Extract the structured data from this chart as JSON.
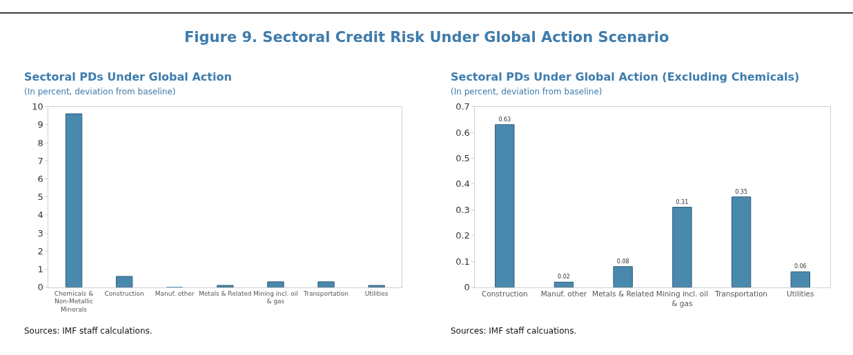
{
  "chart_data": [
    {
      "type": "bar",
      "title": "Sectoral PDs Under Global Action",
      "subtitle": "(In percent, deviation from baseline)",
      "categories": [
        "Chemicals & Non-Metallic Minerals",
        "Construction",
        "Manuf. other",
        "Metals & Related",
        "Mining incl. oil & gas",
        "Transportation",
        "Utilities"
      ],
      "values": [
        9.6,
        0.6,
        0,
        0.1,
        0.3,
        0.3,
        0.1
      ],
      "color": "#4a89ae",
      "ylim": [
        0,
        10
      ],
      "yticks": [
        0,
        1,
        2,
        3,
        4,
        5,
        6,
        7,
        8,
        9,
        10
      ],
      "grid": false,
      "annotations": [
        "Figure 9. Sectoral Credit Risk Under Global Action Scenario",
        "Sources: IMF staff calculations."
      ]
    },
    {
      "type": "bar",
      "title": "Sectoral PDs Under Global Action (Excluding Chemicals)",
      "subtitle": "(In percent, deviation from baseline)",
      "categories": [
        "Construction",
        "Manuf. other",
        "Metals & Related",
        "Mining incl. oil & gas",
        "Transportation",
        "Utilities"
      ],
      "values": [
        0.63,
        0.02,
        0.08,
        0.31,
        0.35,
        0.06
      ],
      "color": "#4a89ae",
      "ylim": [
        0,
        0.7
      ],
      "yticks": [
        0,
        0.1,
        0.2,
        0.3,
        0.4,
        0.5,
        0.6,
        0.7
      ],
      "grid": false,
      "data_labels": true,
      "annotations": [
        "Sources: IMF staff calcuations."
      ]
    }
  ]
}
